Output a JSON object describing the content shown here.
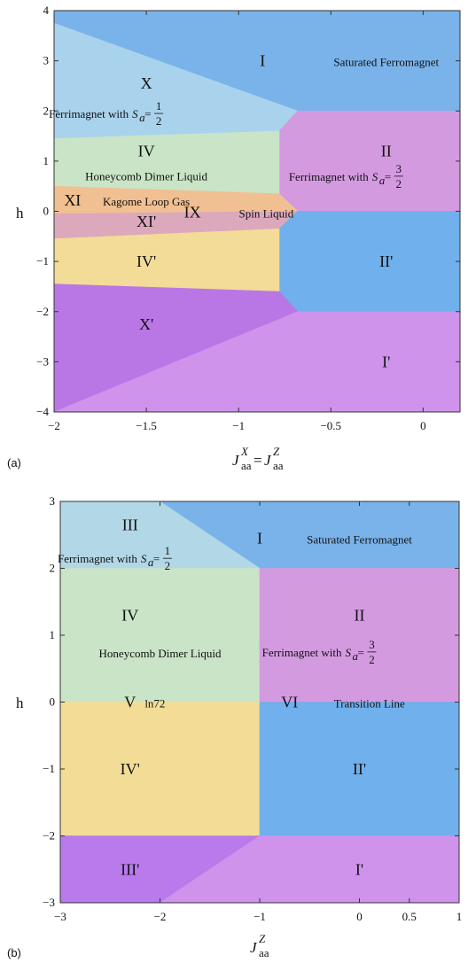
{
  "colors": {
    "I": "#7ab3ea",
    "II": "#d49ae0",
    "IIp": "#70b0ec",
    "Ip": "#cf93ec",
    "X": "#a9d2ec",
    "IV": "#c9e4c6",
    "XI": "#f1c092",
    "XIp": "#dca8bc",
    "IVp": "#f2dc97",
    "Xp": "#b977e6",
    "III": "#b2d7e6",
    "V_IVp": "#f3dd96",
    "IIIp": "#b97aec"
  },
  "chart_data": [
    {
      "panel": "(a)",
      "type": "phase-diagram",
      "xlabel": "J_aa^X = J_aa^Z",
      "ylabel": "h",
      "xlim": [
        -2,
        0.2
      ],
      "ylim": [
        -4,
        4
      ],
      "xticks": [
        {
          "v": -2,
          "l": "−2"
        },
        {
          "v": -1.5,
          "l": "−1.5"
        },
        {
          "v": -1,
          "l": "−1"
        },
        {
          "v": -0.5,
          "l": "−0.5"
        },
        {
          "v": 0,
          "l": "0"
        }
      ],
      "yticks": [
        {
          "v": 4,
          "l": "4"
        },
        {
          "v": 3,
          "l": "3"
        },
        {
          "v": 2,
          "l": "2"
        },
        {
          "v": 1,
          "l": "1"
        },
        {
          "v": 0,
          "l": "0"
        },
        {
          "v": -1,
          "l": "−1"
        },
        {
          "v": -2,
          "l": "−2"
        },
        {
          "v": -3,
          "l": "−3"
        },
        {
          "v": -4,
          "l": "−4"
        }
      ],
      "regions": [
        {
          "key": "I",
          "pts": [
            [
              -2,
              4
            ],
            [
              0.2,
              4
            ],
            [
              0.2,
              2
            ],
            [
              -0.68,
              2
            ],
            [
              -2,
              3.75
            ]
          ]
        },
        {
          "key": "X",
          "pts": [
            [
              -2,
              3.75
            ],
            [
              -0.68,
              2
            ],
            [
              -0.78,
              1.6
            ],
            [
              -2,
              1.45
            ]
          ]
        },
        {
          "key": "II",
          "pts": [
            [
              -0.68,
              2
            ],
            [
              0.2,
              2
            ],
            [
              0.2,
              0
            ],
            [
              -0.68,
              0
            ],
            [
              -0.78,
              0.35
            ],
            [
              -0.78,
              1.6
            ]
          ]
        },
        {
          "key": "IV",
          "pts": [
            [
              -2,
              1.45
            ],
            [
              -0.78,
              1.6
            ],
            [
              -0.78,
              0.35
            ],
            [
              -2,
              0.5
            ]
          ]
        },
        {
          "key": "XI",
          "pts": [
            [
              -2,
              0.5
            ],
            [
              -0.78,
              0.35
            ],
            [
              -0.68,
              0
            ],
            [
              -2,
              -0.05
            ]
          ]
        },
        {
          "key": "XIp",
          "pts": [
            [
              -2,
              -0.05
            ],
            [
              -0.68,
              0
            ],
            [
              -0.78,
              -0.35
            ],
            [
              -2,
              -0.55
            ]
          ]
        },
        {
          "key": "IIp",
          "pts": [
            [
              -0.68,
              0
            ],
            [
              0.2,
              0
            ],
            [
              0.2,
              -2
            ],
            [
              -0.68,
              -2
            ],
            [
              -0.78,
              -1.6
            ],
            [
              -0.78,
              -0.35
            ]
          ]
        },
        {
          "key": "IVp",
          "pts": [
            [
              -2,
              -0.55
            ],
            [
              -0.78,
              -0.35
            ],
            [
              -0.78,
              -1.6
            ],
            [
              -2,
              -1.45
            ]
          ]
        },
        {
          "key": "Xp",
          "pts": [
            [
              -2,
              -1.45
            ],
            [
              -0.78,
              -1.6
            ],
            [
              -0.68,
              -2
            ],
            [
              -2,
              -4
            ]
          ]
        },
        {
          "key": "Ip",
          "pts": [
            [
              -2,
              -4
            ],
            [
              -0.68,
              -2
            ],
            [
              0.2,
              -2
            ],
            [
              0.2,
              -4
            ]
          ]
        }
      ],
      "labels": [
        {
          "t": "I",
          "x": -0.87,
          "y": 3.0,
          "cls": "rom"
        },
        {
          "t": "Saturated Ferromagnet",
          "x": -0.2,
          "y": 3.0,
          "cls": "lab"
        },
        {
          "t": "X",
          "x": -1.5,
          "y": 2.55,
          "cls": "rom"
        },
        {
          "t": "IV",
          "x": -1.5,
          "y": 1.2,
          "cls": "rom"
        },
        {
          "t": "Honeycomb Dimer Liquid",
          "x": -1.5,
          "y": 0.72,
          "cls": "lab"
        },
        {
          "t": "II",
          "x": -0.2,
          "y": 1.2,
          "cls": "rom"
        },
        {
          "t": "XI",
          "x": -1.9,
          "y": 0.22,
          "cls": "rom"
        },
        {
          "t": "Kagome Loop Gas",
          "x": -1.5,
          "y": 0.22,
          "cls": "lab"
        },
        {
          "t": "XI'",
          "x": -1.5,
          "y": -0.2,
          "cls": "rom"
        },
        {
          "t": "IX",
          "x": -1.25,
          "y": -0.02,
          "cls": "rom"
        },
        {
          "t": "Spin Liquid",
          "x": -0.85,
          "y": -0.02,
          "cls": "lab"
        },
        {
          "t": "IV'",
          "x": -1.5,
          "y": -1.0,
          "cls": "rom"
        },
        {
          "t": "II'",
          "x": -0.2,
          "y": -1.0,
          "cls": "rom"
        },
        {
          "t": "X'",
          "x": -1.5,
          "y": -2.25,
          "cls": "rom"
        },
        {
          "t": "I'",
          "x": -0.2,
          "y": -3.0,
          "cls": "rom"
        }
      ],
      "frac_labels": [
        {
          "prefix": "Ferrimagnet with",
          "num": "1",
          "den": "2",
          "x": -1.5,
          "y": 1.95
        },
        {
          "prefix": "Ferrimagnet with",
          "num": "3",
          "den": "2",
          "x": -0.2,
          "y": 0.7
        }
      ]
    },
    {
      "panel": "(b)",
      "type": "phase-diagram",
      "xlabel": "J_aa^Z",
      "ylabel": "h",
      "xlim": [
        -3,
        1
      ],
      "ylim": [
        -3,
        3
      ],
      "xticks": [
        {
          "v": -3,
          "l": "−3"
        },
        {
          "v": -2,
          "l": "−2"
        },
        {
          "v": -1,
          "l": "−1"
        },
        {
          "v": 0,
          "l": "0"
        },
        {
          "v": 0.5,
          "l": "0.5"
        },
        {
          "v": 1,
          "l": "1"
        }
      ],
      "yticks": [
        {
          "v": 3,
          "l": "3"
        },
        {
          "v": 2,
          "l": "2"
        },
        {
          "v": 1,
          "l": "1"
        },
        {
          "v": 0,
          "l": "0"
        },
        {
          "v": -1,
          "l": "−1"
        },
        {
          "v": -2,
          "l": "−2"
        },
        {
          "v": -3,
          "l": "−3"
        }
      ],
      "regions": [
        {
          "key": "I",
          "pts": [
            [
              -2,
              3
            ],
            [
              1,
              3
            ],
            [
              1,
              2
            ],
            [
              -1,
              2
            ]
          ]
        },
        {
          "key": "III",
          "pts": [
            [
              -3,
              3
            ],
            [
              -2,
              3
            ],
            [
              -1,
              2
            ],
            [
              -3,
              2
            ]
          ]
        },
        {
          "key": "IV",
          "pts": [
            [
              -3,
              2
            ],
            [
              -1,
              2
            ],
            [
              -1,
              0
            ],
            [
              -3,
              0
            ]
          ]
        },
        {
          "key": "II",
          "pts": [
            [
              -1,
              2
            ],
            [
              1,
              2
            ],
            [
              1,
              0
            ],
            [
              -1,
              0
            ]
          ]
        },
        {
          "key": "V_IVp",
          "pts": [
            [
              -3,
              0
            ],
            [
              -1,
              0
            ],
            [
              -1,
              -2
            ],
            [
              -3,
              -2
            ]
          ]
        },
        {
          "key": "IIp",
          "pts": [
            [
              -1,
              0
            ],
            [
              1,
              0
            ],
            [
              1,
              -2
            ],
            [
              -1,
              -2
            ]
          ]
        },
        {
          "key": "IIIp",
          "pts": [
            [
              -3,
              -2
            ],
            [
              -1,
              -2
            ],
            [
              -2,
              -3
            ],
            [
              -3,
              -3
            ]
          ]
        },
        {
          "key": "Ip",
          "pts": [
            [
              -1,
              -2
            ],
            [
              1,
              -2
            ],
            [
              1,
              -3
            ],
            [
              -2,
              -3
            ]
          ]
        }
      ],
      "labels": [
        {
          "t": "III",
          "x": -2.3,
          "y": 2.65,
          "cls": "rom"
        },
        {
          "t": "I",
          "x": -1.0,
          "y": 2.45,
          "cls": "rom"
        },
        {
          "t": "Saturated Ferromagnet",
          "x": 0.0,
          "y": 2.45,
          "cls": "lab"
        },
        {
          "t": "IV",
          "x": -2.3,
          "y": 1.3,
          "cls": "rom"
        },
        {
          "t": "Honeycomb Dimer Liquid",
          "x": -2.0,
          "y": 0.75,
          "cls": "lab"
        },
        {
          "t": "II",
          "x": 0.0,
          "y": 1.3,
          "cls": "rom"
        },
        {
          "t": "V",
          "x": -2.3,
          "y": 0.0,
          "cls": "rom"
        },
        {
          "t": "ln72",
          "x": -2.05,
          "y": 0.0,
          "cls": "lab"
        },
        {
          "t": "VI",
          "x": -0.7,
          "y": 0.0,
          "cls": "rom"
        },
        {
          "t": "Transition Line",
          "x": 0.1,
          "y": 0.0,
          "cls": "lab"
        },
        {
          "t": "IV'",
          "x": -2.3,
          "y": -1.0,
          "cls": "rom"
        },
        {
          "t": "II'",
          "x": 0.0,
          "y": -1.0,
          "cls": "rom"
        },
        {
          "t": "III'",
          "x": -2.3,
          "y": -2.5,
          "cls": "rom"
        },
        {
          "t": "I'",
          "x": 0.0,
          "y": -2.5,
          "cls": "rom"
        }
      ],
      "frac_labels": [
        {
          "prefix": "Ferrimagnet with",
          "num": "1",
          "den": "2",
          "x": -2.05,
          "y": 2.15
        },
        {
          "prefix": "Ferrimagnet with",
          "num": "3",
          "den": "2",
          "x": 0.0,
          "y": 0.75
        }
      ]
    }
  ]
}
